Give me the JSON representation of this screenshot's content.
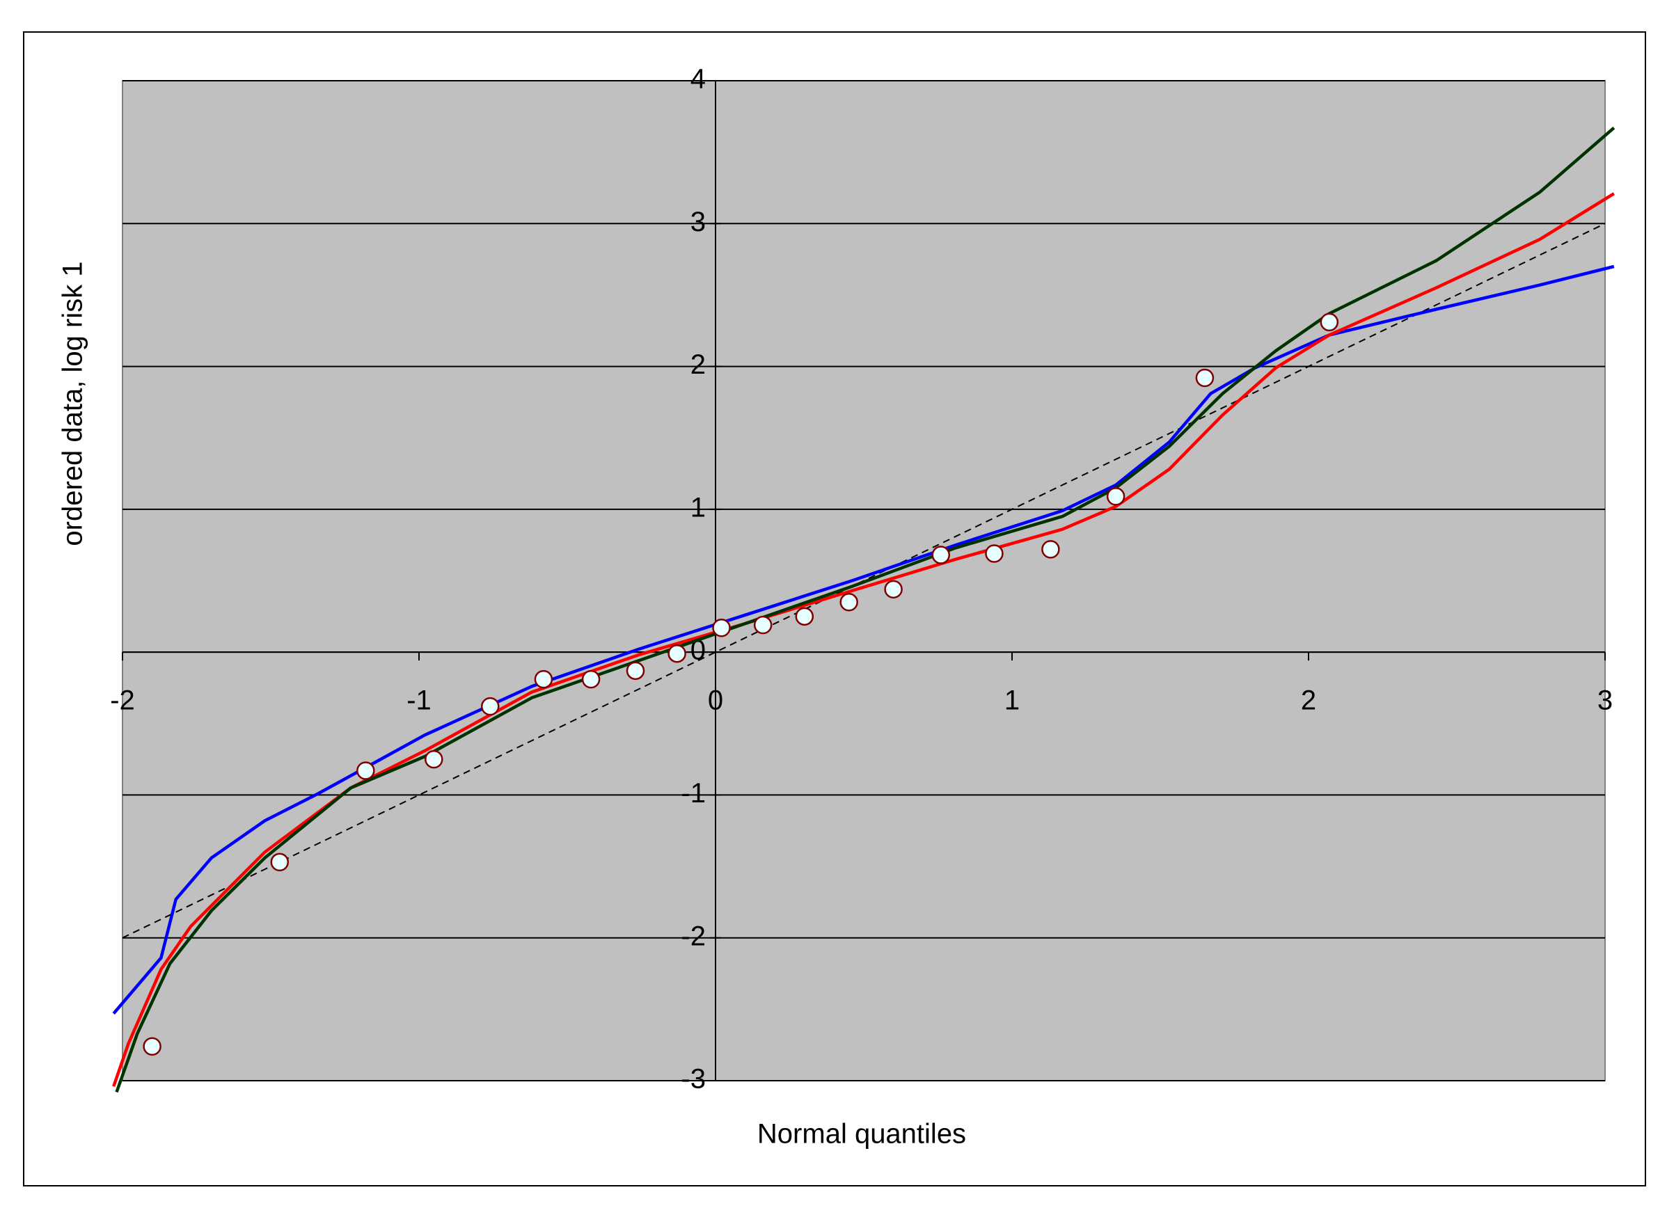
{
  "chart_data": {
    "type": "line",
    "xlabel": "Normal quantiles",
    "ylabel": "ordered data, log risk 1",
    "xlim": [
      -2,
      3
    ],
    "ylim": [
      -3,
      4
    ],
    "xticks": [
      -2,
      -1,
      0,
      1,
      2,
      3
    ],
    "yticks": [
      -3,
      -2,
      -1,
      0,
      1,
      2,
      3,
      4
    ],
    "grid": true,
    "background": "#c0c0c0",
    "series": [
      {
        "mode": "dashed",
        "color": "#000000",
        "x": [
          -2,
          3
        ],
        "values": [
          -2,
          3
        ]
      },
      {
        "mode": "line",
        "color": "#0000ff",
        "x": [
          -2.03,
          -1.87,
          -1.82,
          -1.7,
          -1.52,
          -1.34,
          -0.98,
          -0.62,
          -0.26,
          0.1,
          0.46,
          0.81,
          1.17,
          1.35,
          1.53,
          1.67,
          1.82,
          2.07,
          2.43,
          2.78,
          3.03
        ],
        "values": [
          -2.53,
          -2.14,
          -1.73,
          -1.44,
          -1.18,
          -0.99,
          -0.58,
          -0.24,
          0.02,
          0.26,
          0.5,
          0.75,
          0.99,
          1.17,
          1.47,
          1.81,
          1.99,
          2.22,
          2.4,
          2.57,
          2.7
        ]
      },
      {
        "mode": "line",
        "color": "#ff0000",
        "x": [
          -2.03,
          -1.98,
          -1.87,
          -1.77,
          -1.52,
          -1.23,
          -0.98,
          -0.62,
          -0.26,
          0.1,
          0.46,
          0.81,
          1.17,
          1.35,
          1.53,
          1.71,
          1.89,
          2.07,
          2.43,
          2.78,
          3.03
        ],
        "values": [
          -3.04,
          -2.74,
          -2.22,
          -1.92,
          -1.4,
          -0.95,
          -0.69,
          -0.28,
          -0.02,
          0.2,
          0.43,
          0.65,
          0.86,
          1.02,
          1.28,
          1.66,
          1.99,
          2.22,
          2.55,
          2.89,
          3.21
        ]
      },
      {
        "mode": "line",
        "color": "#003300",
        "x": [
          -2.02,
          -1.95,
          -1.84,
          -1.7,
          -1.52,
          -1.23,
          -0.98,
          -0.62,
          -0.26,
          0.1,
          0.46,
          0.81,
          1.17,
          1.35,
          1.53,
          1.71,
          1.89,
          2.07,
          2.43,
          2.78,
          3.03
        ],
        "values": [
          -3.08,
          -2.67,
          -2.18,
          -1.81,
          -1.44,
          -0.95,
          -0.73,
          -0.32,
          -0.06,
          0.2,
          0.46,
          0.73,
          0.95,
          1.15,
          1.44,
          1.81,
          2.11,
          2.37,
          2.74,
          3.22,
          3.67
        ]
      },
      {
        "mode": "markers",
        "color": "#e8ffff",
        "x": [
          -1.9,
          -1.47,
          -1.18,
          -0.95,
          -0.76,
          -0.58,
          -0.42,
          -0.27,
          -0.13,
          0.02,
          0.16,
          0.3,
          0.45,
          0.6,
          0.76,
          0.94,
          1.13,
          1.35,
          1.65,
          2.07
        ],
        "values": [
          -2.76,
          -1.47,
          -0.83,
          -0.75,
          -0.38,
          -0.19,
          -0.19,
          -0.13,
          -0.01,
          0.17,
          0.19,
          0.25,
          0.35,
          0.44,
          0.68,
          0.69,
          0.72,
          1.09,
          1.92,
          2.31
        ]
      }
    ]
  }
}
